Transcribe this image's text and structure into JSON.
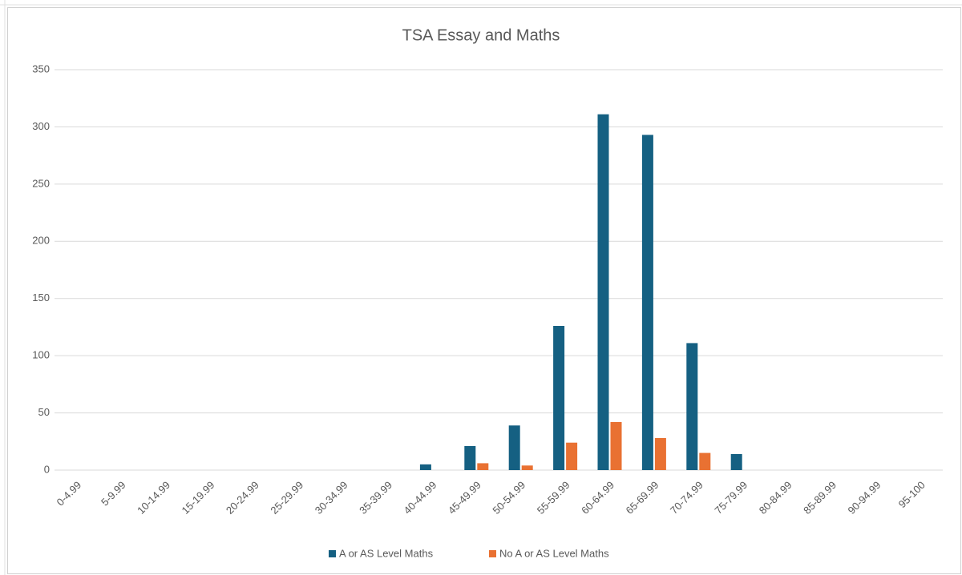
{
  "chart_data": {
    "type": "bar",
    "title": "TSA Essay and Maths",
    "categories": [
      "0-4.99",
      "5-9.99",
      "10-14.99",
      "15-19.99",
      "20-24.99",
      "25-29.99",
      "30-34.99",
      "35-39.99",
      "40-44.99",
      "45-49.99",
      "50-54.99",
      "55-59.99",
      "60-64.99",
      "65-69.99",
      "70-74.99",
      "75-79.99",
      "80-84.99",
      "85-89.99",
      "90-94.99",
      "95-100"
    ],
    "series": [
      {
        "name": "A or AS Level Maths",
        "color": "#156082",
        "values": [
          0,
          0,
          0,
          0,
          0,
          0,
          0,
          0,
          5,
          21,
          39,
          126,
          311,
          293,
          111,
          14,
          0,
          0,
          0,
          0
        ]
      },
      {
        "name": "No A or AS Level Maths",
        "color": "#e97132",
        "values": [
          0,
          0,
          0,
          0,
          0,
          0,
          0,
          0,
          0,
          6,
          4,
          24,
          42,
          28,
          15,
          0,
          0,
          0,
          0,
          0
        ]
      }
    ],
    "ylim": [
      0,
      350
    ],
    "yticks": [
      0,
      50,
      100,
      150,
      200,
      250,
      300,
      350
    ],
    "grid": true,
    "legend": "bottom"
  }
}
